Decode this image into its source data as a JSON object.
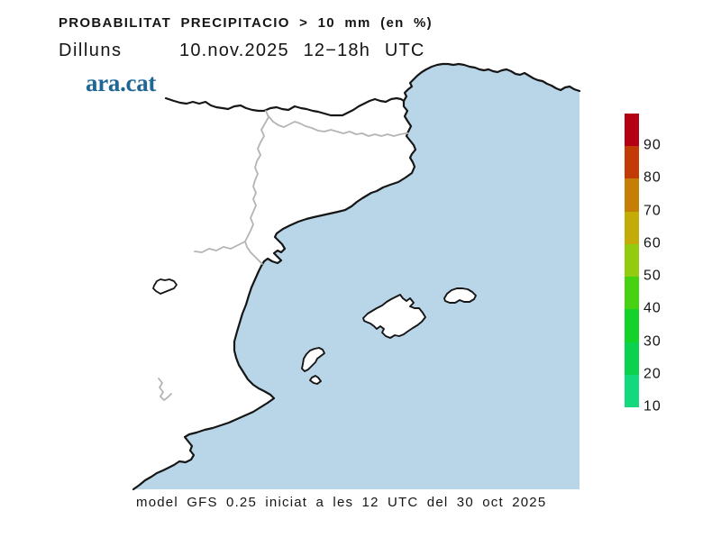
{
  "header": {
    "title": "PROBABILITAT PRECIPITACIO > 10 mm (en %)",
    "day": "Dilluns",
    "datetime": "10.nov.2025 12−18h UTC",
    "brand": "ara.cat",
    "brand_color": "#1f6795"
  },
  "colorbar": {
    "tick_labels_top_to_bottom": [
      "90",
      "80",
      "70",
      "60",
      "50",
      "40",
      "30",
      "20",
      "10"
    ],
    "segment_colors_top_to_bottom": [
      "#b30014",
      "#c23a06",
      "#c67f06",
      "#c3ac08",
      "#93cb10",
      "#46d113",
      "#14d229",
      "#0bd24e",
      "#14d87e"
    ]
  },
  "map": {
    "sea_color": "#b9d6e8",
    "land_color": "#ffffff",
    "coastline_color": "#161616",
    "country_border_color": "#161616",
    "admin_border_color": "#b4b4b4"
  },
  "footer": {
    "text": "model GFS 0.25 iniciat a les 12 UTC del 30 oct 2025"
  }
}
